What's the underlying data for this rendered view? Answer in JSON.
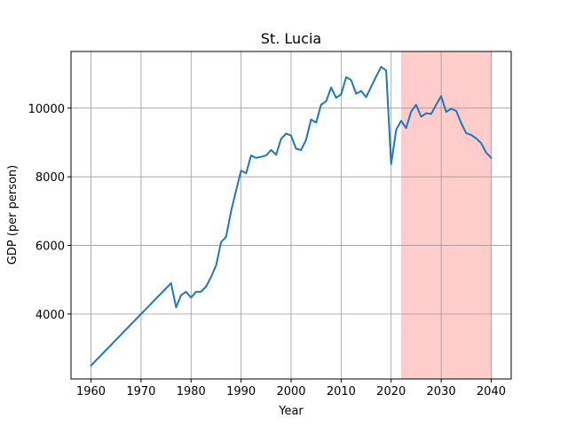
{
  "chart_data": {
    "type": "line",
    "title": "St. Lucia",
    "xlabel": "Year",
    "ylabel": "GDP (per person)",
    "xlim": [
      1956,
      2044
    ],
    "ylim": [
      2110,
      11650
    ],
    "xticks": [
      1960,
      1970,
      1980,
      1990,
      2000,
      2010,
      2020,
      2030,
      2040
    ],
    "yticks": [
      4000,
      6000,
      8000,
      10000
    ],
    "grid": true,
    "colors": {
      "line": "#1f77b4",
      "shade": "#ffcccc",
      "grid": "#999999"
    },
    "highlight_region": {
      "x_start": 2022,
      "x_end": 2040
    },
    "series": [
      {
        "x": [
          1960,
          1976,
          1977,
          1978,
          1979,
          1980,
          1981,
          1982,
          1983,
          1984,
          1985,
          1986,
          1987,
          1988,
          1989,
          1990,
          1991,
          1992,
          1993,
          1994,
          1995,
          1996,
          1997,
          1998,
          1999,
          2000,
          2001,
          2002,
          2003,
          2004,
          2005,
          2006,
          2007,
          2008,
          2009,
          2010,
          2011,
          2012,
          2013,
          2014,
          2015,
          2016,
          2017,
          2018,
          2019,
          2020,
          2021,
          2022,
          2023,
          2024,
          2025,
          2026,
          2027,
          2028,
          2029,
          2030,
          2031,
          2032,
          2033,
          2034,
          2035,
          2036,
          2037,
          2038,
          2039,
          2040
        ],
        "values": [
          2500,
          4900,
          4200,
          4550,
          4650,
          4480,
          4650,
          4650,
          4800,
          5080,
          5420,
          6100,
          6250,
          7000,
          7600,
          8180,
          8100,
          8620,
          8550,
          8580,
          8620,
          8780,
          8640,
          9100,
          9260,
          9200,
          8820,
          8780,
          9080,
          9670,
          9580,
          10100,
          10200,
          10600,
          10300,
          10400,
          10900,
          10820,
          10420,
          10500,
          10320,
          10620,
          10920,
          11200,
          11100,
          8370,
          9370,
          9630,
          9420,
          9900,
          10100,
          9750,
          9850,
          9830,
          10100,
          10350,
          9890,
          9980,
          9920,
          9570,
          9270,
          9220,
          9120,
          8980,
          8700,
          8550
        ]
      }
    ]
  }
}
